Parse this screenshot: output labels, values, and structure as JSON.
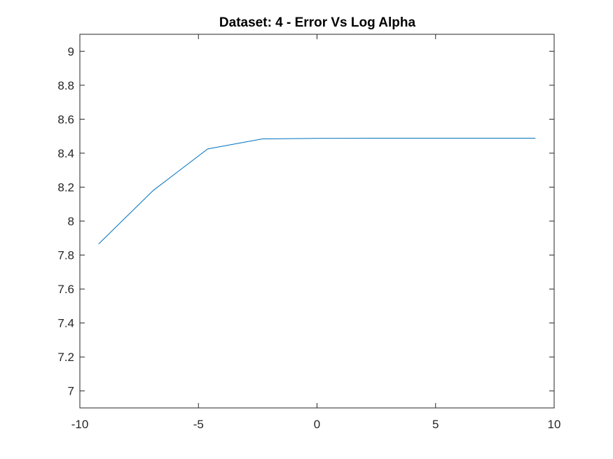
{
  "chart_data": {
    "type": "line",
    "title": "Dataset: 4 - Error Vs Log Alpha",
    "xlabel": "",
    "ylabel": "",
    "xlim": [
      -10,
      10
    ],
    "ylim": [
      6.9,
      9.1
    ],
    "xticks": [
      -10,
      -5,
      0,
      5,
      10
    ],
    "yticks": [
      7,
      7.2,
      7.4,
      7.6,
      7.8,
      8,
      8.2,
      8.4,
      8.6,
      8.8,
      9
    ],
    "grid": false,
    "series": [
      {
        "color": "#0072bd",
        "x": [
          -9.21,
          -6.91,
          -4.61,
          -2.3,
          0,
          2.3,
          4.61,
          6.91,
          9.21
        ],
        "y": [
          7.865,
          8.18,
          8.425,
          8.484,
          8.487,
          8.488,
          8.488,
          8.488,
          8.488
        ]
      }
    ]
  }
}
